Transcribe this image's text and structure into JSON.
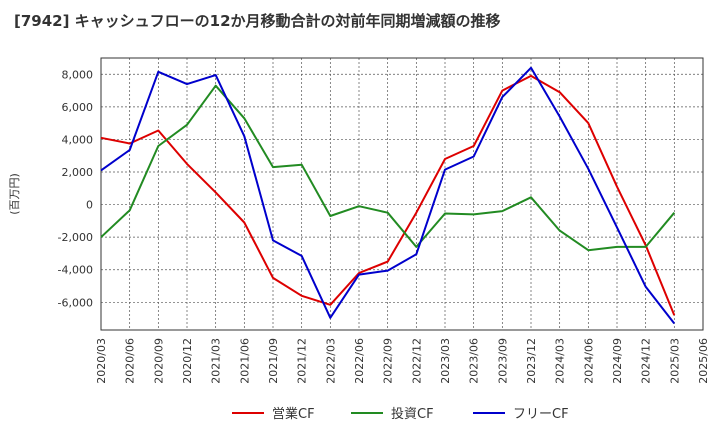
{
  "chart_data": {
    "type": "line",
    "title": "[7942]  キャッシュフローの12か月移動合計の対前年同期増減額の推移",
    "ylabel": "(百万円)",
    "xlabel": "",
    "ylim": [
      -7700,
      9000
    ],
    "yticks": [
      -6000,
      -4000,
      -2000,
      0,
      2000,
      4000,
      6000,
      8000
    ],
    "ytick_labels": [
      "-6,000",
      "-4,000",
      "-2,000",
      "0",
      "2,000",
      "4,000",
      "6,000",
      "8,000"
    ],
    "categories": [
      "2020/03",
      "2020/06",
      "2020/09",
      "2020/12",
      "2021/03",
      "2021/06",
      "2021/09",
      "2021/12",
      "2022/03",
      "2022/06",
      "2022/09",
      "2022/12",
      "2023/03",
      "2023/06",
      "2023/09",
      "2023/12",
      "2024/03",
      "2024/06",
      "2024/09",
      "2024/12",
      "2025/03",
      "2025/06"
    ],
    "grid": true,
    "legend_position": "bottom",
    "series": [
      {
        "name": "営業CF",
        "color": "#dd0000",
        "values": [
          4100,
          3750,
          4550,
          2500,
          750,
          -1100,
          -4500,
          -5600,
          -6150,
          -4200,
          -3500,
          -500,
          2800,
          3600,
          7000,
          7900,
          6900,
          5000,
          1100,
          -2500,
          -6800,
          null
        ]
      },
      {
        "name": "投資CF",
        "color": "#228b22",
        "values": [
          -2000,
          -350,
          3600,
          4900,
          7300,
          5300,
          2300,
          2450,
          -700,
          -100,
          -500,
          -2600,
          -550,
          -600,
          -400,
          450,
          -1600,
          -2800,
          -2600,
          -2600,
          -500,
          null
        ]
      },
      {
        "name": "フリーCF",
        "color": "#0000cc",
        "values": [
          2100,
          3350,
          8150,
          7400,
          7950,
          4200,
          -2200,
          -3150,
          -6950,
          -4300,
          -4050,
          -3050,
          2150,
          2950,
          6600,
          8400,
          5400,
          2200,
          -1400,
          -5050,
          -7300,
          null
        ]
      }
    ]
  }
}
